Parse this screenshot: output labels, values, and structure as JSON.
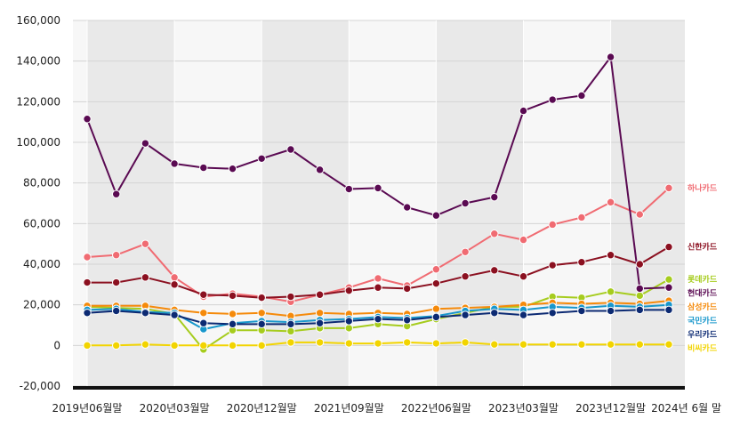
{
  "chart_data": {
    "type": "line",
    "title": "",
    "xlabel": "",
    "ylabel": "",
    "ylim": [
      -20000,
      160000
    ],
    "yticks": [
      -20000,
      0,
      20000,
      40000,
      60000,
      80000,
      100000,
      120000,
      140000,
      160000
    ],
    "ytick_labels": [
      "-20,000",
      "0",
      "20,000",
      "40,000",
      "60,000",
      "80,000",
      "100,000",
      "120,000",
      "140,000",
      "160,000"
    ],
    "x_tick_labels": [
      "2019년06월말",
      "2020년03월말",
      "2020년12월말",
      "2021년09월말",
      "2022년06월말",
      "2023년03월말",
      "2023년12월말",
      "2024년 6월 말"
    ],
    "x_tick_index": [
      0,
      3,
      6,
      9,
      12,
      15,
      18,
      20.6
    ],
    "x": [
      "2019년06월말",
      "2019년09월말",
      "2019년12월말",
      "2020년03월말",
      "2020년06월말",
      "2020년09월말",
      "2020년12월말",
      "2021년03월말",
      "2021년06월말",
      "2021년09월말",
      "2021년12월말",
      "2022년03월말",
      "2022년06월말",
      "2022년09월말",
      "2022년12월말",
      "2023년03월말",
      "2023년06월말",
      "2023년09월말",
      "2023년12월말",
      "2024년03월말",
      "2024년 6월 말"
    ],
    "grid": true,
    "legend": "right, labels at line ends",
    "series": [
      {
        "name": "하나카드",
        "color": "#f06b72",
        "values": [
          43500,
          44500,
          50000,
          33500,
          24000,
          25500,
          24000,
          21500,
          25000,
          28500,
          33000,
          29500,
          37500,
          46000,
          55000,
          52000,
          59500,
          63000,
          70500,
          64500,
          77500
        ]
      },
      {
        "name": "신한카드",
        "color": "#8b1020",
        "values": [
          31000,
          31000,
          33500,
          30000,
          25000,
          24500,
          23500,
          24000,
          25000,
          27000,
          28500,
          28000,
          30500,
          34000,
          37000,
          34000,
          39500,
          41000,
          44500,
          40000,
          48500
        ]
      },
      {
        "name": "롯데카드",
        "color": "#a6cc1e",
        "values": [
          19000,
          18500,
          18000,
          15500,
          -2000,
          7500,
          7500,
          7000,
          8500,
          8500,
          10500,
          9500,
          13000,
          16000,
          19000,
          19000,
          24000,
          23500,
          26500,
          24500,
          32500
        ]
      },
      {
        "name": "현대카드",
        "color": "#5a0a52",
        "values": [
          111500,
          74500,
          99500,
          89500,
          87500,
          87000,
          92000,
          96500,
          86500,
          77000,
          77500,
          68000,
          64000,
          70000,
          73000,
          115500,
          121000,
          123000,
          142000,
          28000,
          28500
        ]
      },
      {
        "name": "삼성카드",
        "color": "#f58a0b",
        "values": [
          19500,
          19500,
          19500,
          17500,
          16000,
          15500,
          16000,
          14500,
          16000,
          15500,
          16000,
          15500,
          18000,
          18500,
          19000,
          20000,
          21000,
          20500,
          21000,
          20500,
          22000
        ]
      },
      {
        "name": "국민카드",
        "color": "#1897cc",
        "values": [
          17500,
          18000,
          16500,
          16000,
          8000,
          11000,
          12000,
          11500,
          12500,
          13000,
          14000,
          13500,
          14500,
          17000,
          18000,
          17500,
          19000,
          18500,
          19500,
          19000,
          20000
        ]
      },
      {
        "name": "우리카드",
        "color": "#0c2a73",
        "values": [
          16000,
          17000,
          16000,
          15000,
          11000,
          10500,
          10500,
          10500,
          11000,
          12000,
          13000,
          12500,
          14000,
          15000,
          16000,
          15000,
          16000,
          17000,
          17000,
          17500,
          17500
        ]
      },
      {
        "name": "비씨카드",
        "color": "#f2d400",
        "values": [
          0,
          0,
          500,
          0,
          0,
          0,
          0,
          1500,
          1500,
          1000,
          1000,
          1500,
          1000,
          1500,
          500,
          500,
          500,
          500,
          500,
          500,
          500
        ]
      }
    ]
  }
}
